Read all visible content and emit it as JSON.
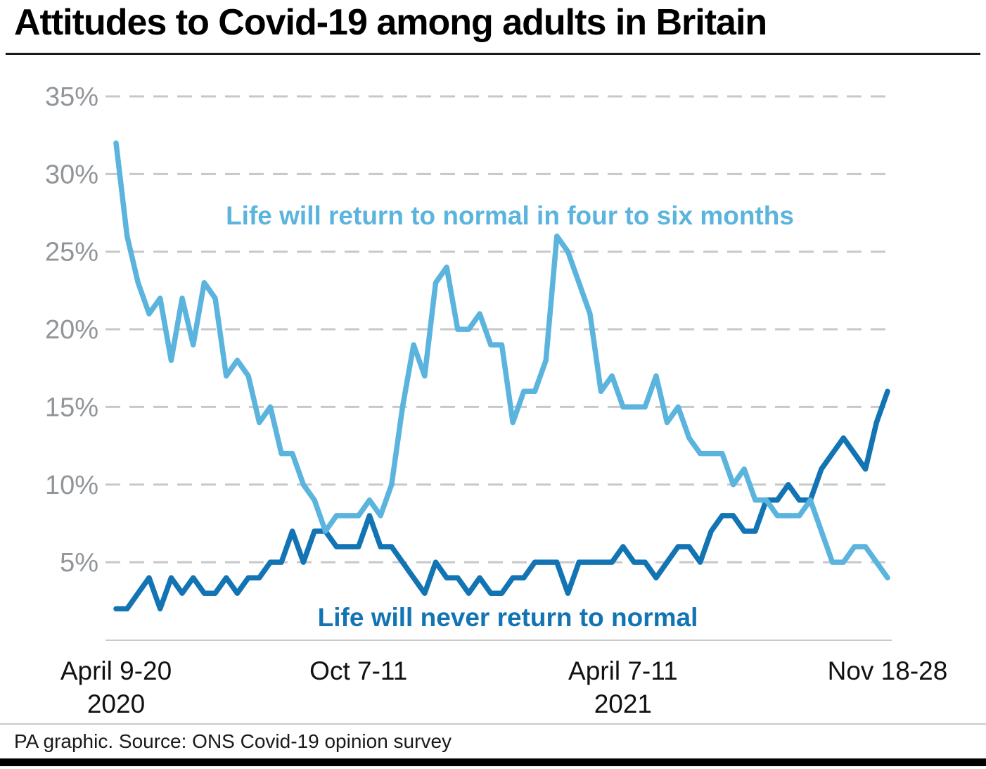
{
  "title": "Attitudes to Covid-19 among adults in Britain",
  "source": "PA graphic. Source: ONS Covid-19 opinion survey",
  "colors": {
    "light_blue": "#5bb4de",
    "dark_blue": "#1374b4",
    "gridline": "#c6c8ca",
    "axis_line": "#c9c9c9",
    "y_tick_text": "#919599",
    "x_tick_text": "#111111",
    "title_text": "#000000"
  },
  "chart_data": {
    "type": "line",
    "title": "Attitudes to Covid-19 among adults in Britain",
    "xlabel": "",
    "ylabel": "",
    "ylabel_format": "percent",
    "ylim": [
      0,
      36
    ],
    "grid": "horizontal-dashed",
    "legend_position": "inline-labels",
    "y_axis": {
      "tick_values": [
        35,
        30,
        25,
        20,
        15,
        10,
        5
      ],
      "tick_suffix": "%"
    },
    "x_axis": {
      "ticks": [
        {
          "label": "April 9-20",
          "sublabel": "2020",
          "series_index": 0
        },
        {
          "label": "Oct 7-11",
          "sublabel": "",
          "series_index": 22
        },
        {
          "label": "April 7-11",
          "sublabel": "2021",
          "series_index": 46
        },
        {
          "label": "Nov 18-28",
          "sublabel": "",
          "series_index": 70
        }
      ]
    },
    "series": [
      {
        "name": "Life will return to normal in four to six months",
        "color": "#5bb4de",
        "values": [
          32,
          26,
          23,
          21,
          22,
          18,
          22,
          19,
          23,
          22,
          17,
          18,
          17,
          14,
          15,
          12,
          12,
          10,
          9,
          7,
          8,
          8,
          8,
          9,
          8,
          10,
          15,
          19,
          17,
          23,
          24,
          20,
          20,
          21,
          19,
          19,
          14,
          16,
          16,
          18,
          26,
          25,
          23,
          21,
          16,
          17,
          15,
          15,
          15,
          17,
          14,
          15,
          13,
          12,
          12,
          12,
          10,
          11,
          9,
          9,
          8,
          8,
          8,
          9,
          7,
          5,
          5,
          6,
          6,
          5,
          4
        ]
      },
      {
        "name": "Life will never return to normal",
        "color": "#1374b4",
        "values": [
          2,
          2,
          3,
          4,
          2,
          4,
          3,
          4,
          3,
          3,
          4,
          3,
          4,
          4,
          5,
          5,
          7,
          5,
          7,
          7,
          6,
          6,
          6,
          8,
          6,
          6,
          5,
          4,
          3,
          5,
          4,
          4,
          3,
          4,
          3,
          3,
          4,
          4,
          5,
          5,
          5,
          3,
          5,
          5,
          5,
          5,
          6,
          5,
          5,
          4,
          5,
          6,
          6,
          5,
          7,
          8,
          8,
          7,
          7,
          9,
          9,
          10,
          9,
          9,
          11,
          12,
          13,
          12,
          11,
          14,
          16
        ]
      }
    ]
  }
}
